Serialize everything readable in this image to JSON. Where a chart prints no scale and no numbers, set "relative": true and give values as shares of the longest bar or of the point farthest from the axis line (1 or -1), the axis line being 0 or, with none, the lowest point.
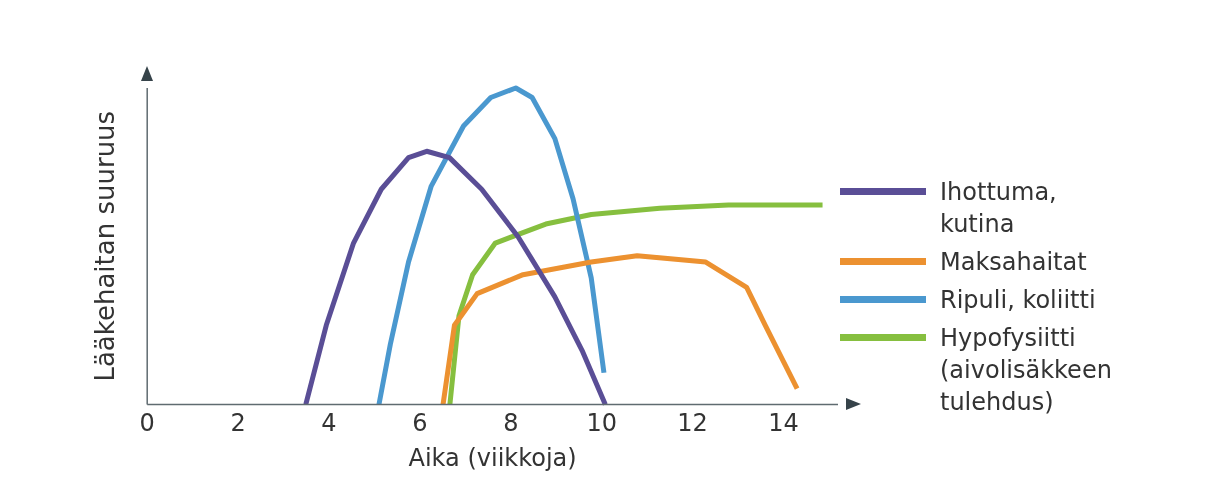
{
  "chart_data": {
    "type": "line",
    "relative": true,
    "xlabel": "Aika (viikkoja)",
    "ylabel": "Lääkehaitan suuruus",
    "xlim": [
      0,
      15.2
    ],
    "xticks": [
      0,
      2,
      4,
      6,
      8,
      10,
      12,
      14
    ],
    "grid": false,
    "legend": "right",
    "marker": "none",
    "line_style": "solid",
    "series": [
      {
        "name": "Ihottuma, kutina",
        "color": "#5a4e96",
        "x": [
          3.49,
          3.94,
          4.54,
          5.15,
          5.75,
          6.15,
          6.65,
          7.36,
          8.16,
          8.97,
          9.57,
          10.08
        ],
        "values": [
          0,
          0.25,
          0.51,
          0.68,
          0.78,
          0.8,
          0.78,
          0.68,
          0.53,
          0.34,
          0.17,
          0
        ]
      },
      {
        "name": "Maksahaitat",
        "color": "#ec9130",
        "x": [
          6.51,
          6.76,
          7.26,
          8.27,
          9.77,
          10.78,
          12.29,
          13.19,
          13.6,
          14.3
        ],
        "values": [
          0,
          0.25,
          0.35,
          0.41,
          0.45,
          0.47,
          0.45,
          0.37,
          0.25,
          0.05
        ]
      },
      {
        "name": "Ripuli, koliitti",
        "color": "#4a98cf",
        "x": [
          5.1,
          5.35,
          5.75,
          6.25,
          6.96,
          7.56,
          8.11,
          8.47,
          8.97,
          9.37,
          9.77,
          10.05
        ],
        "values": [
          0,
          0.19,
          0.45,
          0.69,
          0.88,
          0.97,
          1.0,
          0.97,
          0.84,
          0.65,
          0.4,
          0.1
        ]
      },
      {
        "name": "Hypofysiitti (aivolisäkkeen tulehdus)",
        "color": "#86bf3f",
        "x": [
          6.66,
          6.86,
          7.16,
          7.66,
          8.77,
          9.77,
          11.28,
          12.79,
          14.86
        ],
        "values": [
          0,
          0.28,
          0.41,
          0.51,
          0.57,
          0.6,
          0.62,
          0.63,
          0.63
        ]
      }
    ]
  }
}
